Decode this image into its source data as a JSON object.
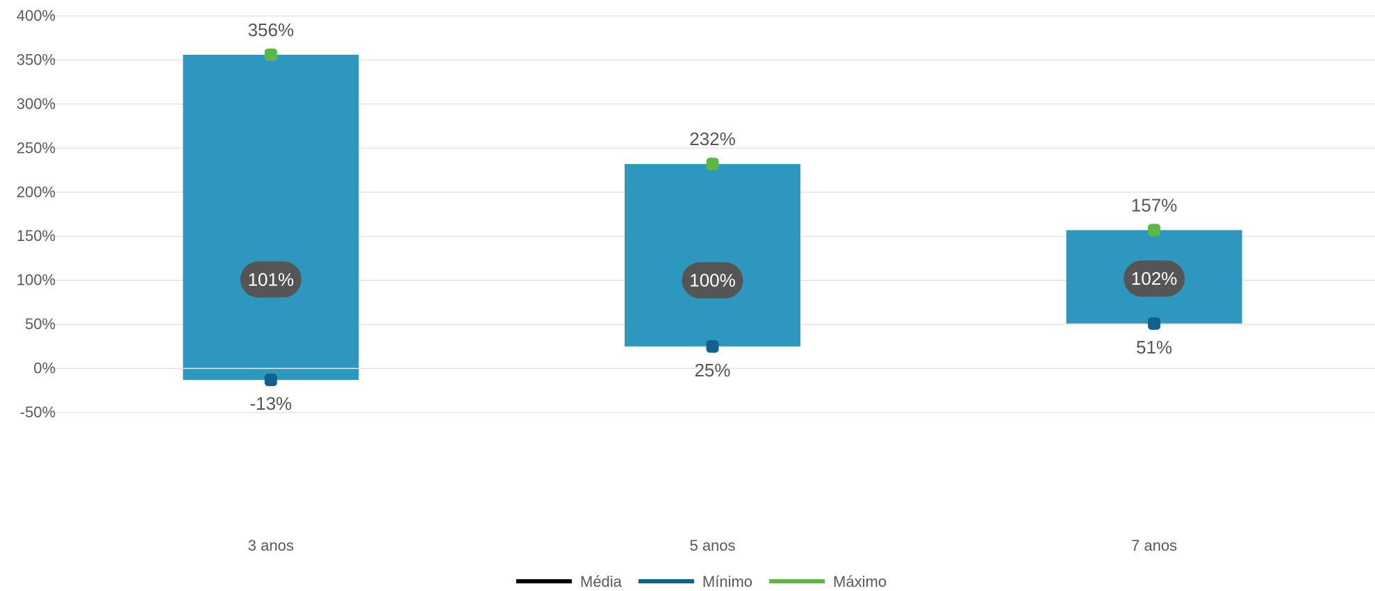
{
  "chart_data": {
    "type": "bar",
    "categories": [
      "3 anos",
      "5 anos",
      "7 anos"
    ],
    "series": [
      {
        "name": "Média",
        "values": [
          101,
          100,
          102
        ],
        "color": "#000000"
      },
      {
        "name": "Mínimo",
        "values": [
          -13,
          25,
          51
        ],
        "color": "#11618f"
      },
      {
        "name": "Máximo",
        "values": [
          356,
          232,
          157
        ],
        "color": "#5cb846"
      }
    ],
    "bar_color": "#2e97c0",
    "mean_badge_color": "#555555",
    "ylim": [
      -50,
      400
    ],
    "yticks": [
      -50,
      0,
      50,
      100,
      150,
      200,
      250,
      300,
      350,
      400
    ],
    "tick_suffix": "%",
    "labels": {
      "max": [
        "356%",
        "232%",
        "157%"
      ],
      "min": [
        "-13%",
        "25%",
        "51%"
      ],
      "mean": [
        "101%",
        "100%",
        "102%"
      ]
    },
    "grid": true,
    "legend_position": "bottom-center"
  }
}
